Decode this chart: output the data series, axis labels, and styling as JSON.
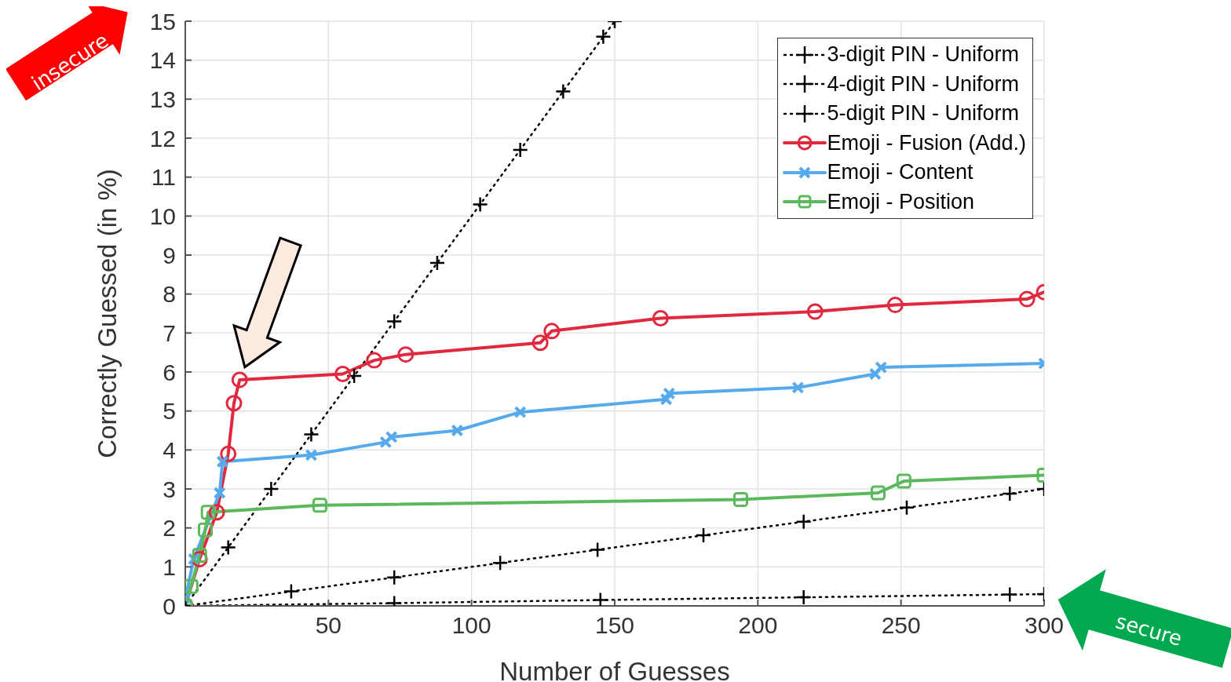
{
  "chart_data": {
    "type": "line",
    "xlabel": "Number of Guesses",
    "ylabel": "Correctly Guessed (in %)",
    "xlim": [
      0,
      300
    ],
    "xticks": [
      {
        "value": 0,
        "label": null
      },
      50,
      100,
      150,
      200,
      250,
      300
    ],
    "ylim": [
      0,
      15
    ],
    "yticks": [
      0,
      1,
      2,
      3,
      4,
      5,
      6,
      7,
      8,
      9,
      10,
      11,
      12,
      13,
      14,
      15
    ],
    "grid": true,
    "legend": "top right",
    "annotations": [
      "insecure",
      "secure"
    ],
    "series": [
      {
        "name": "3-digit PIN - Uniform",
        "color": "#000000",
        "line_style": "dotted",
        "marker": "plus",
        "x": [
          0,
          15,
          30,
          44,
          59,
          73,
          88,
          103,
          117,
          132,
          146,
          150
        ],
        "values": [
          0,
          1.5,
          3,
          4.4,
          5.9,
          7.3,
          8.8,
          10.3,
          11.7,
          13.2,
          14.6,
          15
        ]
      },
      {
        "name": "4-digit PIN - Uniform",
        "color": "#000000",
        "line_style": "dotted",
        "marker": "plus",
        "x": [
          0,
          37,
          73,
          110,
          144,
          181,
          216,
          252,
          288,
          300
        ],
        "values": [
          0,
          0.37,
          0.73,
          1.1,
          1.44,
          1.81,
          2.16,
          2.52,
          2.88,
          3
        ]
      },
      {
        "name": "5-digit PIN - Uniform",
        "color": "#000000",
        "line_style": "dotted",
        "marker": "plus",
        "x": [
          0,
          73,
          145,
          216,
          288,
          300
        ],
        "values": [
          0,
          0.07,
          0.15,
          0.22,
          0.29,
          0.3
        ]
      },
      {
        "name": "Emoji - Fusion (Add.)",
        "color": "#e0293f",
        "line_style": "solid",
        "marker": "circle",
        "x": [
          0,
          5,
          11,
          15,
          17,
          19,
          55,
          66,
          77,
          124,
          128,
          166,
          220,
          248,
          294,
          300
        ],
        "values": [
          0,
          1.2,
          2.4,
          3.9,
          5.2,
          5.8,
          5.95,
          6.3,
          6.45,
          6.75,
          7.05,
          7.38,
          7.55,
          7.72,
          7.87,
          8.05
        ]
      },
      {
        "name": "Emoji - Content",
        "color": "#56aaeb",
        "line_style": "solid",
        "marker": "cross",
        "x": [
          0,
          3,
          12,
          13,
          44,
          70,
          72,
          95,
          117,
          168,
          169,
          214,
          241,
          243,
          300
        ],
        "values": [
          0.2,
          1.2,
          2.9,
          3.7,
          3.87,
          4.2,
          4.33,
          4.5,
          4.97,
          5.3,
          5.45,
          5.6,
          5.95,
          6.12,
          6.22
        ]
      },
      {
        "name": "Emoji - Position",
        "color": "#5cb85c",
        "line_style": "solid",
        "marker": "square",
        "x": [
          0,
          2,
          5,
          7,
          8,
          47,
          194,
          242,
          251,
          300
        ],
        "values": [
          0,
          0.5,
          1.3,
          1.95,
          2.4,
          2.58,
          2.73,
          2.9,
          3.2,
          3.35
        ]
      }
    ]
  }
}
